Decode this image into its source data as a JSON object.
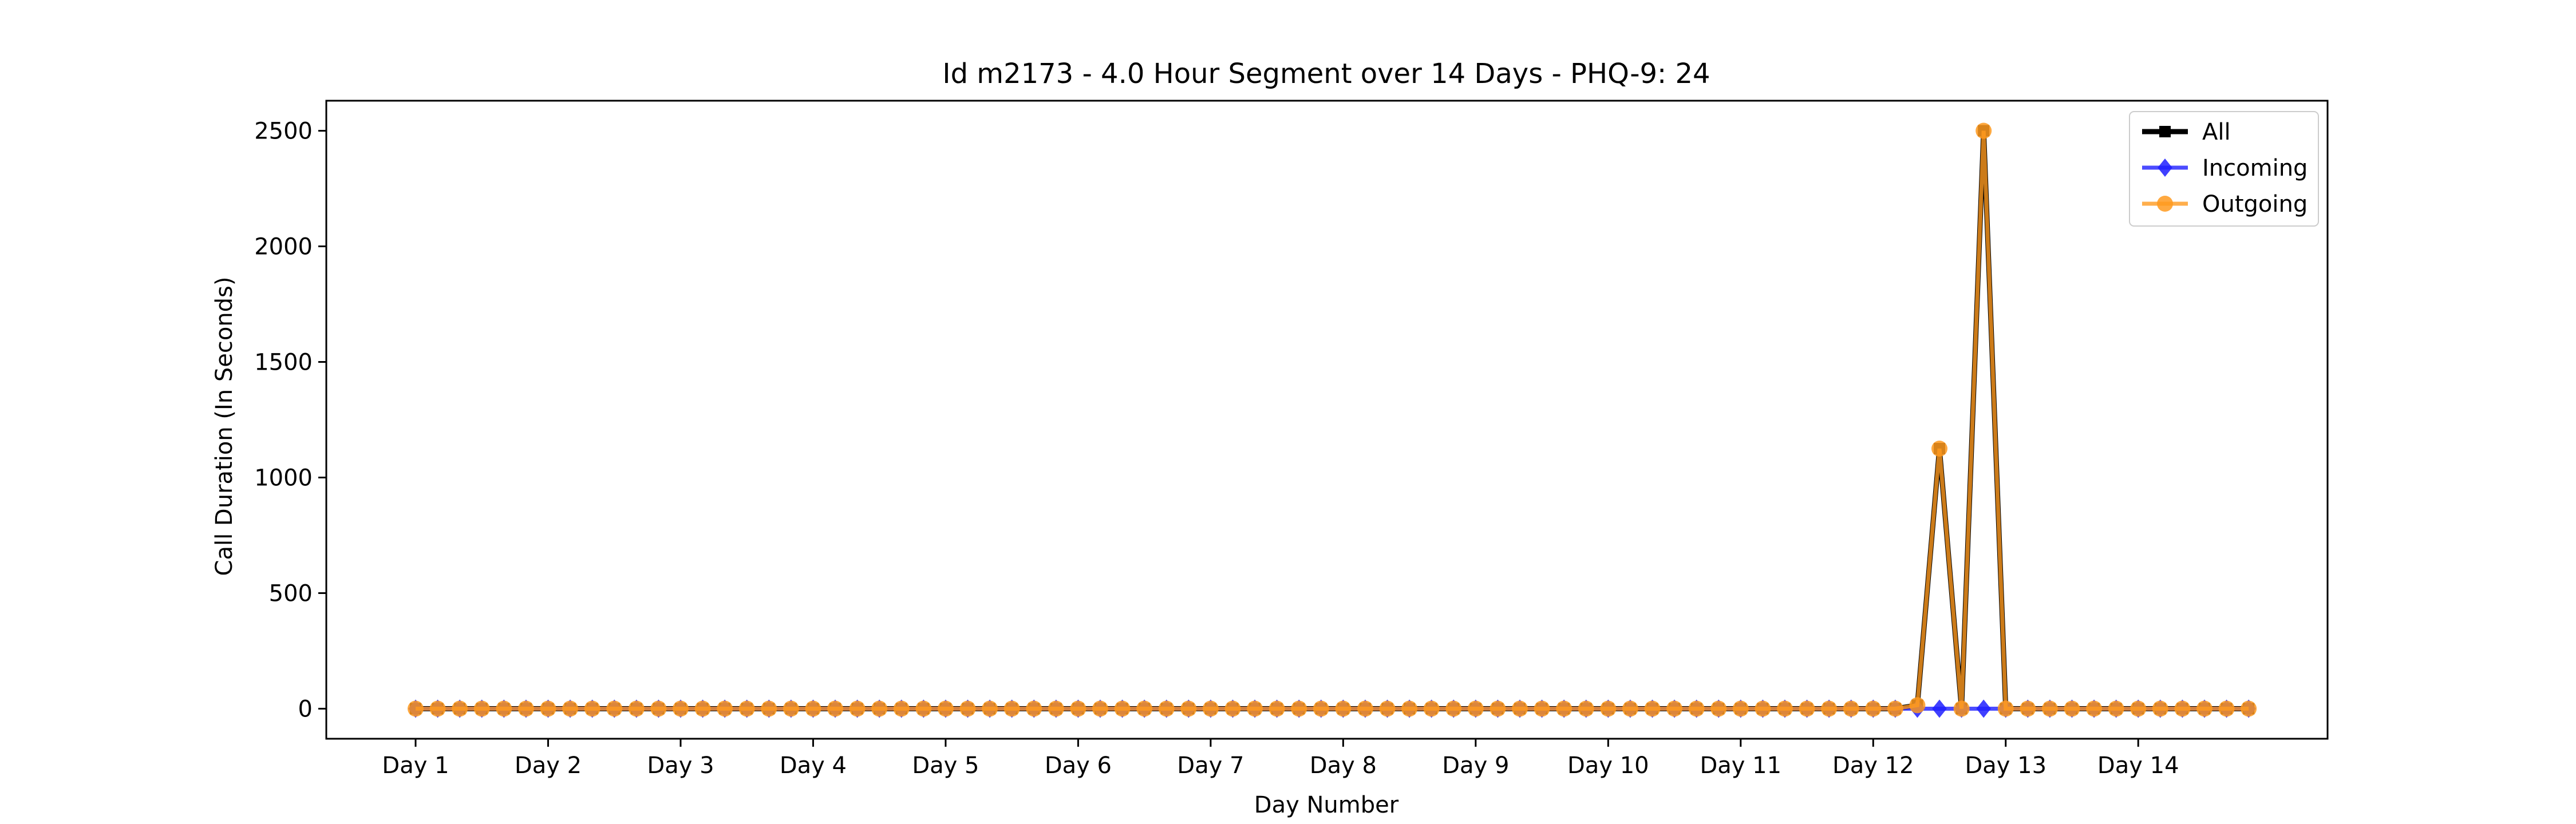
{
  "chart_data": {
    "type": "line",
    "title": "Id m2173 - 4.0 Hour Segment over 14 Days - PHQ-9: 24",
    "xlabel": "Day Number",
    "ylabel": "Call Duration (In Seconds)",
    "ylim": [
      -130,
      2630
    ],
    "yticks": [
      0,
      500,
      1000,
      1500,
      2000,
      2500
    ],
    "x_tick_labels": [
      "Day 1",
      "Day 2",
      "Day 3",
      "Day 4",
      "Day 5",
      "Day 6",
      "Day 7",
      "Day 8",
      "Day 9",
      "Day 10",
      "Day 11",
      "Day 12",
      "Day 13",
      "Day 14"
    ],
    "segments_per_day": 6,
    "num_points": 84,
    "grid": false,
    "legend_position": "top-right",
    "series": [
      {
        "name": "All",
        "color": "#000000",
        "marker": "square",
        "nonzero": [
          {
            "index": 68,
            "value": 15
          },
          {
            "index": 69,
            "value": 1125
          },
          {
            "index": 71,
            "value": 2500
          }
        ]
      },
      {
        "name": "Incoming",
        "color": "#1f1fff",
        "marker": "diamond",
        "nonzero": []
      },
      {
        "name": "Outgoing",
        "color": "#ff9a1f",
        "marker": "circle",
        "nonzero": [
          {
            "index": 68,
            "value": 15
          },
          {
            "index": 69,
            "value": 1125
          },
          {
            "index": 71,
            "value": 2500
          }
        ]
      }
    ]
  }
}
